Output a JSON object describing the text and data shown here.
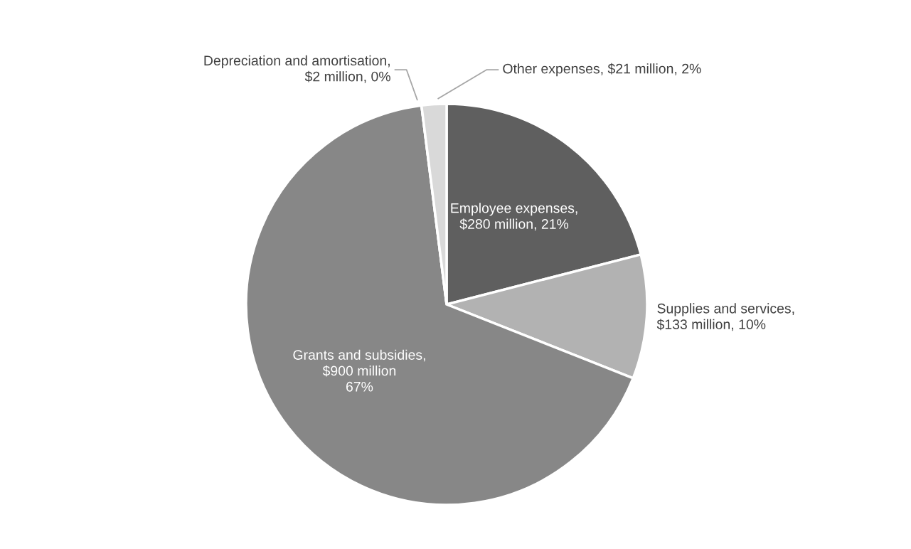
{
  "chart_data": {
    "type": "pie",
    "categories": [
      "Employee expenses,\n$280 million, 21%",
      "Supplies and services,\n$133 million, 10%",
      "Grants and subsidies,\n$900 million\n67%",
      "Depreciation and amortisation,\n$2 million, 0%",
      "Other expenses, $21 million, 2%"
    ],
    "values": [
      21,
      10,
      67,
      0,
      2
    ],
    "colors": [
      "#5f5f5f",
      "#b2b2b2",
      "#878787",
      "#404040",
      "#d9d9d9"
    ]
  }
}
